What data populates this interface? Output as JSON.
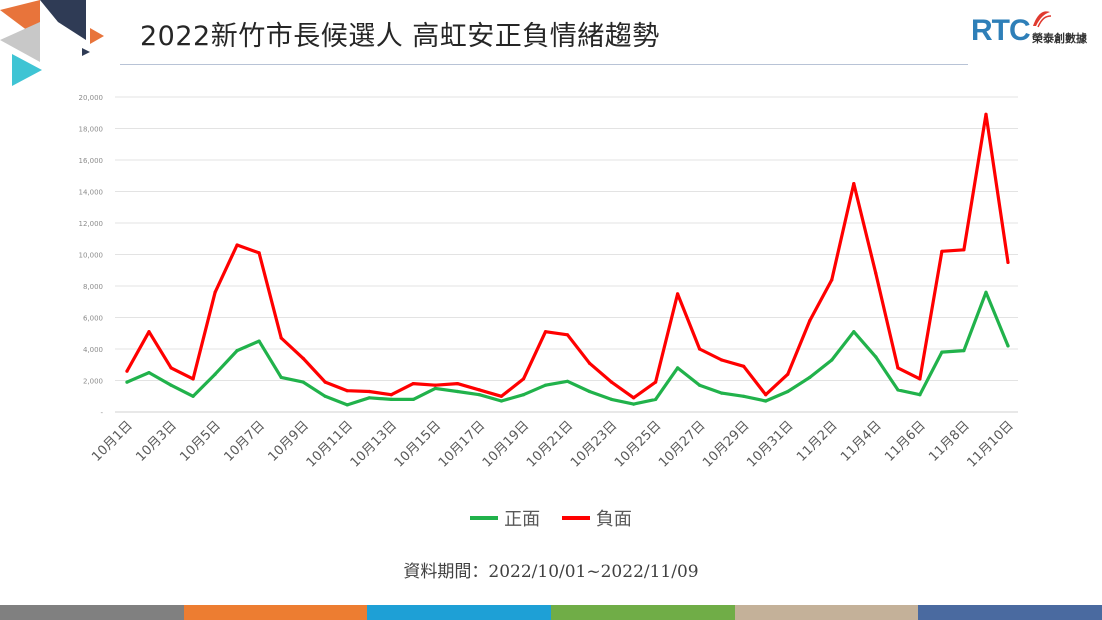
{
  "title": "2022新竹市長候選人 高虹安正負情緒趨勢",
  "logo": {
    "brand": "RTC",
    "tagline": "榮泰創數據",
    "brand_color": "#2e7fb8"
  },
  "caption": "資料期間：2022/10/01~2022/11/09",
  "footer_colors": [
    "#808080",
    "#ed7d31",
    "#1ea0d6",
    "#70ad47",
    "#c4b199",
    "#4a6aa0"
  ],
  "chart_data": {
    "type": "line",
    "title": "",
    "xlabel": "",
    "ylabel": "",
    "ylim": [
      0,
      20000
    ],
    "y_ticks": [
      "-",
      "2,000",
      "4,000",
      "6,000",
      "8,000",
      "10,000",
      "12,000",
      "14,000",
      "16,000",
      "18,000",
      "20,000"
    ],
    "grid": true,
    "legend_position": "bottom",
    "x_tick_labels": [
      "10月1日",
      "10月3日",
      "10月5日",
      "10月7日",
      "10月9日",
      "10月11日",
      "10月13日",
      "10月15日",
      "10月17日",
      "10月19日",
      "10月21日",
      "10月23日",
      "10月25日",
      "10月27日",
      "10月29日",
      "10月31日",
      "11月2日",
      "11月4日",
      "11月6日",
      "11月8日",
      "11月10日"
    ],
    "x": [
      "10月1日",
      "10月2日",
      "10月3日",
      "10月4日",
      "10月5日",
      "10月6日",
      "10月7日",
      "10月8日",
      "10月9日",
      "10月10日",
      "10月11日",
      "10月12日",
      "10月13日",
      "10月14日",
      "10月15日",
      "10月16日",
      "10月17日",
      "10月18日",
      "10月19日",
      "10月20日",
      "10月21日",
      "10月22日",
      "10月23日",
      "10月24日",
      "10月25日",
      "10月26日",
      "10月27日",
      "10月28日",
      "10月29日",
      "10月30日",
      "10月31日",
      "11月1日",
      "11月2日",
      "11月3日",
      "11月4日",
      "11月5日",
      "11月6日",
      "11月7日",
      "11月8日",
      "11月9日",
      "11月10日"
    ],
    "series": [
      {
        "name": "正面",
        "color": "#21b24b",
        "values": [
          1900,
          2500,
          1700,
          1000,
          2400,
          3900,
          4500,
          2200,
          1900,
          1000,
          450,
          900,
          800,
          800,
          1500,
          1300,
          1100,
          700,
          1100,
          1700,
          1950,
          1300,
          800,
          500,
          800,
          2800,
          1700,
          1200,
          1000,
          700,
          1300,
          2200,
          3300,
          5100,
          3500,
          1400,
          1100,
          3800,
          3900,
          7600,
          4200
        ]
      },
      {
        "name": "負面",
        "color": "#ff0000",
        "values": [
          2600,
          5100,
          2800,
          2100,
          7600,
          10600,
          10100,
          4700,
          3400,
          1900,
          1350,
          1300,
          1100,
          1800,
          1700,
          1800,
          1400,
          1000,
          2100,
          5100,
          4900,
          3100,
          1900,
          900,
          1900,
          7500,
          4000,
          3300,
          2900,
          1100,
          2400,
          5800,
          8400,
          14500,
          8800,
          2800,
          2100,
          10200,
          10300,
          18900,
          9500
        ]
      }
    ]
  }
}
